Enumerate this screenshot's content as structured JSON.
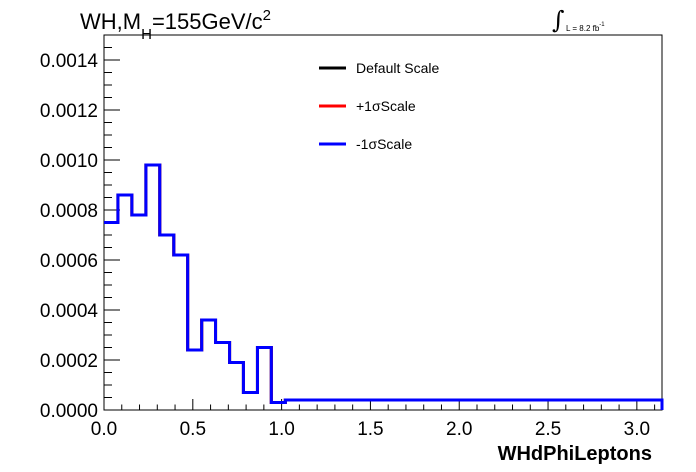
{
  "header": {
    "title_main": "WH,M",
    "title_sub": "H",
    "title_rest": "=155GeV/c",
    "title_sup": "2",
    "lumi_text": "L = 8.2 fb",
    "lumi_sup": "-1"
  },
  "chart_data": {
    "type": "line",
    "style": "step-histogram",
    "xlabel": "WHdPhiLeptons",
    "ylabel": "",
    "xlim": [
      0.0,
      3.14159
    ],
    "ylim": [
      0.0,
      0.0015
    ],
    "x_ticks": [
      "0.0",
      "0.5",
      "1.0",
      "1.5",
      "2.0",
      "2.5",
      "3.0"
    ],
    "y_ticks": [
      "0.0000",
      "0.0002",
      "0.0004",
      "0.0006",
      "0.0008",
      "0.0010",
      "0.0012",
      "0.0014"
    ],
    "legend_position": "top-center",
    "bin_edges": [
      0.0,
      0.0785,
      0.157,
      0.236,
      0.314,
      0.393,
      0.471,
      0.55,
      0.628,
      0.707,
      0.785,
      0.864,
      0.942,
      1.021,
      3.14159
    ],
    "series": [
      {
        "name": "Default Scale",
        "color": "#000000",
        "values": [
          0.00075,
          0.00086,
          0.00078,
          0.00098,
          0.0007,
          0.00062,
          0.00024,
          0.00036,
          0.00027,
          0.00019,
          7e-05,
          0.00025,
          3e-05,
          4e-05,
          0.0
        ]
      },
      {
        "name": "+1σScale",
        "color": "#ff0000",
        "values": [
          0.00075,
          0.00086,
          0.00078,
          0.00098,
          0.0007,
          0.00062,
          0.00024,
          0.00036,
          0.00027,
          0.00019,
          7e-05,
          0.00025,
          3e-05,
          4e-05,
          0.0
        ]
      },
      {
        "name": "-1σScale",
        "color": "#0000ff",
        "values": [
          0.00075,
          0.00086,
          0.00078,
          0.00098,
          0.0007,
          0.00062,
          0.00024,
          0.00036,
          0.00027,
          0.00019,
          7e-05,
          0.00025,
          3e-05,
          4e-05,
          0.0
        ]
      }
    ]
  }
}
